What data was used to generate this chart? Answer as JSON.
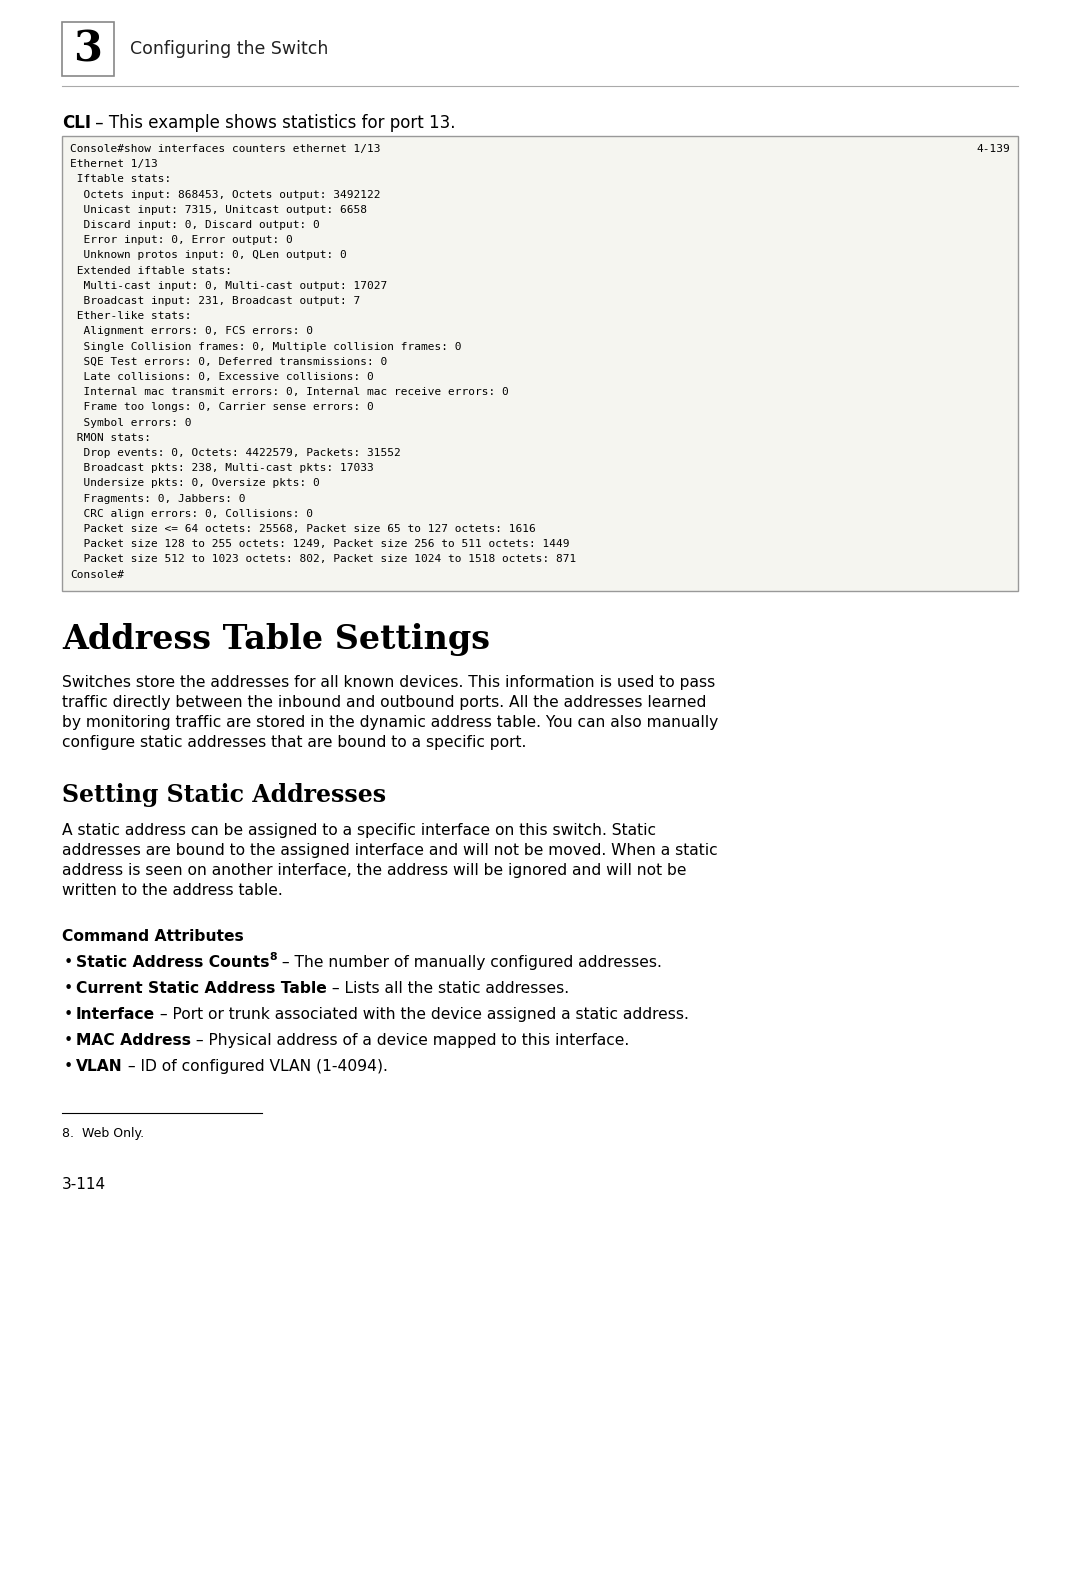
{
  "bg_color": "#ffffff",
  "header_number": "3",
  "header_text": "Configuring the Switch",
  "cli_label_bold": "CLI",
  "cli_label_rest": " – This example shows statistics for port 13.",
  "code_lines": [
    [
      "Console#show interfaces counters ethernet 1/13",
      "4-139"
    ],
    [
      "Ethernet 1/13",
      ""
    ],
    [
      " Iftable stats:",
      ""
    ],
    [
      "  Octets input: 868453, Octets output: 3492122",
      ""
    ],
    [
      "  Unicast input: 7315, Unitcast output: 6658",
      ""
    ],
    [
      "  Discard input: 0, Discard output: 0",
      ""
    ],
    [
      "  Error input: 0, Error output: 0",
      ""
    ],
    [
      "  Unknown protos input: 0, QLen output: 0",
      ""
    ],
    [
      " Extended iftable stats:",
      ""
    ],
    [
      "  Multi-cast input: 0, Multi-cast output: 17027",
      ""
    ],
    [
      "  Broadcast input: 231, Broadcast output: 7",
      ""
    ],
    [
      " Ether-like stats:",
      ""
    ],
    [
      "  Alignment errors: 0, FCS errors: 0",
      ""
    ],
    [
      "  Single Collision frames: 0, Multiple collision frames: 0",
      ""
    ],
    [
      "  SQE Test errors: 0, Deferred transmissions: 0",
      ""
    ],
    [
      "  Late collisions: 0, Excessive collisions: 0",
      ""
    ],
    [
      "  Internal mac transmit errors: 0, Internal mac receive errors: 0",
      ""
    ],
    [
      "  Frame too longs: 0, Carrier sense errors: 0",
      ""
    ],
    [
      "  Symbol errors: 0",
      ""
    ],
    [
      " RMON stats:",
      ""
    ],
    [
      "  Drop events: 0, Octets: 4422579, Packets: 31552",
      ""
    ],
    [
      "  Broadcast pkts: 238, Multi-cast pkts: 17033",
      ""
    ],
    [
      "  Undersize pkts: 0, Oversize pkts: 0",
      ""
    ],
    [
      "  Fragments: 0, Jabbers: 0",
      ""
    ],
    [
      "  CRC align errors: 0, Collisions: 0",
      ""
    ],
    [
      "  Packet size <= 64 octets: 25568, Packet size 65 to 127 octets: 1616",
      ""
    ],
    [
      "  Packet size 128 to 255 octets: 1249, Packet size 256 to 511 octets: 1449",
      ""
    ],
    [
      "  Packet size 512 to 1023 octets: 802, Packet size 1024 to 1518 octets: 871",
      ""
    ],
    [
      "Console#",
      ""
    ]
  ],
  "section_title": "Address Table Settings",
  "section_body_lines": [
    "Switches store the addresses for all known devices. This information is used to pass",
    "traffic directly between the inbound and outbound ports. All the addresses learned",
    "by monitoring traffic are stored in the dynamic address table. You can also manually",
    "configure static addresses that are bound to a specific port."
  ],
  "subsection_title": "Setting Static Addresses",
  "subsection_body_lines": [
    "A static address can be assigned to a specific interface on this switch. Static",
    "addresses are bound to the assigned interface and will not be moved. When a static",
    "address is seen on another interface, the address will be ignored and will not be",
    "written to the address table."
  ],
  "cmd_attr_title": "Command Attributes",
  "bullet_items": [
    {
      "bold": "Static Address Counts",
      "sup": "8",
      "rest": " – The number of manually configured addresses."
    },
    {
      "bold": "Current Static Address Table",
      "sup": "",
      "rest": " – Lists all the static addresses."
    },
    {
      "bold": "Interface",
      "sup": "",
      "rest": " – Port or trunk associated with the device assigned a static address."
    },
    {
      "bold": "MAC Address",
      "sup": "",
      "rest": " – Physical address of a device mapped to this interface."
    },
    {
      "bold": "VLAN",
      "sup": "",
      "rest": " – ID of configured VLAN (1-4094)."
    }
  ],
  "footnote_label": "8.  Web Only.",
  "page_number": "3-114",
  "code_bg": "#f5f5f0",
  "code_border": "#999999"
}
